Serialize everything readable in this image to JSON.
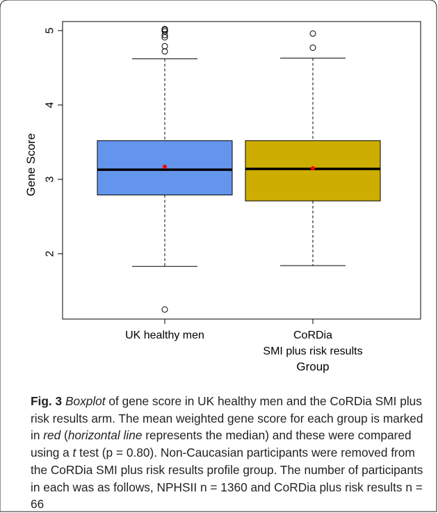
{
  "chart_data": {
    "type": "boxplot",
    "ylabel": "Gene Score",
    "xlabel": "Group",
    "ylim": [
      1.1,
      5.15
    ],
    "yticks": [
      "2",
      "3",
      "4",
      "5"
    ],
    "grid": false,
    "legend": "none",
    "mean_marker_color": "#ff0000",
    "median_color": "#000000",
    "categories": [
      "UK healthy men",
      "CoRDia\nSMI plus risk results"
    ],
    "boxes": [
      {
        "whisker_low": 1.83,
        "q1": 2.79,
        "median": 3.13,
        "q3": 3.52,
        "whisker_high": 4.62,
        "mean": 3.17,
        "color": "#6495ed",
        "outliers": [
          1.25,
          4.72,
          4.79,
          4.91,
          4.94,
          4.99,
          5.01,
          5.02
        ]
      },
      {
        "whisker_low": 1.84,
        "q1": 2.71,
        "median": 3.14,
        "q3": 3.52,
        "whisker_high": 4.63,
        "mean": 3.15,
        "color": "#cdad00",
        "outliers": [
          4.77,
          4.96
        ]
      }
    ]
  },
  "caption": {
    "fig_label": "Fig. 3",
    "p1_it": "Boxplot",
    "p2": " of gene score in UK healthy men and the CoRDia SMI plus risk results arm. The mean weighted gene score for each group is marked in ",
    "p3_it": "red",
    "p4": " (",
    "p5_it": "horizontal line",
    "p6": " represents the median) and these were compared using a ",
    "p7_it": "t",
    "p8": " test (p = 0.80). Non-Caucasian participants were removed from the CoRDia SMI plus risk results profile group. The number of participants in each was as follows, NPHSII n = 1360 and CoRDia plus risk results n = 66"
  }
}
